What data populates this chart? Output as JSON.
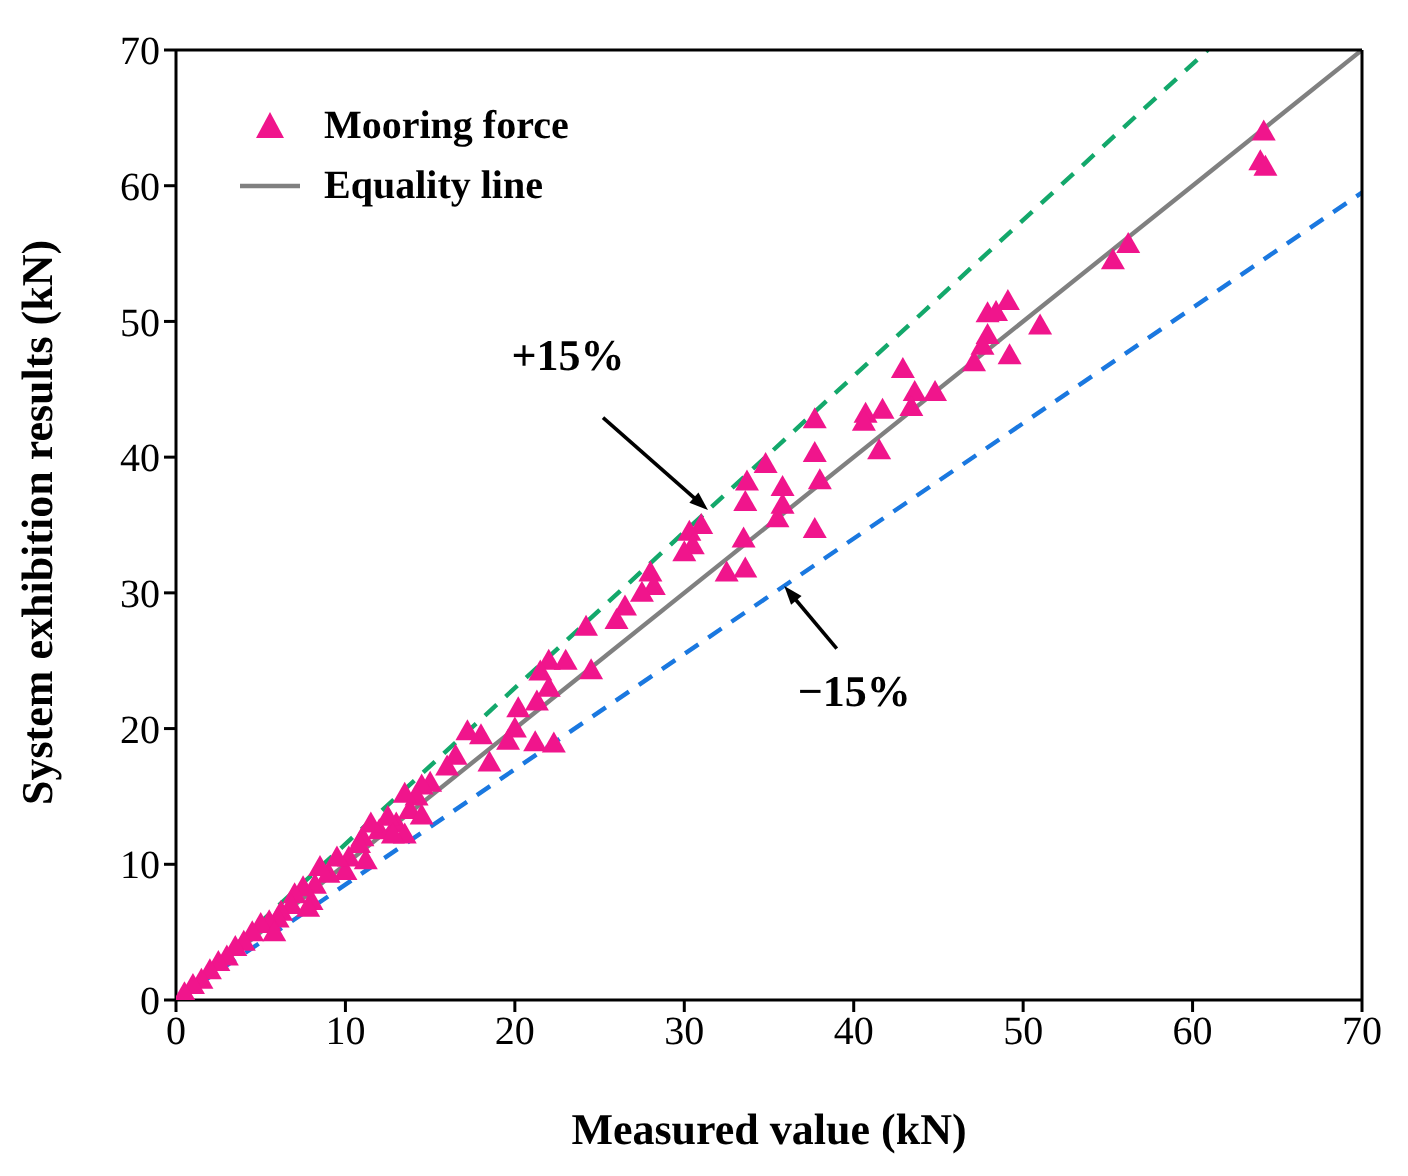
{
  "chart_data": {
    "type": "scatter",
    "xlabel": "Measured value (kN)",
    "ylabel": "System exhibition results (kN)",
    "xlim": [
      0,
      70
    ],
    "ylim": [
      0,
      70
    ],
    "xticks": [
      0,
      10,
      20,
      30,
      40,
      50,
      60,
      70
    ],
    "yticks": [
      0,
      10,
      20,
      30,
      40,
      50,
      60,
      70
    ],
    "legend": "top left",
    "annotations": [
      {
        "text": "+15%",
        "x": 31.4,
        "y": 36.1
      },
      {
        "text": "−15%",
        "x": 35.9,
        "y": 30.5
      }
    ],
    "series": [
      {
        "name": "Mooring force",
        "color": "#f0158c",
        "marker": "triangle",
        "x": [
          64.2,
          64.0,
          64.3,
          55.3,
          56.2,
          47.9,
          49.1,
          48.4,
          51.0,
          47.9,
          47.6,
          47.1,
          49.2,
          42.9,
          43.6,
          44.8,
          43.4,
          41.7,
          40.7,
          40.6,
          37.7,
          41.5,
          37.7,
          38.0,
          37.7,
          35.8,
          35.8,
          35.5,
          33.7,
          33.6,
          33.5,
          33.6,
          34.8,
          32.5,
          31.0,
          30.3,
          30.5,
          30.0,
          28.0,
          28.2,
          27.5,
          26.5,
          26.0,
          24.2,
          24.5,
          23.0,
          22.0,
          21.5,
          22.0,
          21.3,
          21.2,
          22.3,
          20.2,
          20.0,
          19.6,
          18.0,
          18.5,
          17.2,
          16.5,
          16.0,
          15.0,
          14.5,
          14.2,
          13.8,
          13.5,
          13.0,
          12.5,
          12.0,
          11.5,
          11.0,
          10.8,
          10.2,
          10.0,
          9.5,
          9.0,
          8.5,
          8.2,
          8.0,
          7.5,
          7.0,
          6.8,
          6.2,
          6.0,
          5.5,
          5.0,
          4.5,
          4.0,
          3.5,
          3.0,
          2.5,
          2.0,
          1.5,
          1.0,
          0.5,
          7.8,
          5.8,
          13.5,
          14.5,
          12.8,
          11.2
        ],
        "values": [
          64.0,
          61.8,
          61.4,
          54.5,
          55.7,
          50.6,
          51.5,
          50.7,
          49.7,
          49.0,
          48.2,
          47.0,
          47.5,
          46.5,
          44.8,
          44.8,
          43.7,
          43.5,
          43.2,
          42.6,
          42.8,
          40.5,
          40.3,
          38.3,
          34.7,
          37.8,
          36.5,
          35.5,
          38.2,
          36.7,
          34.0,
          31.8,
          39.5,
          31.5,
          35.0,
          34.5,
          33.5,
          33.0,
          31.5,
          30.5,
          30.0,
          29.0,
          28.0,
          27.5,
          24.3,
          25.0,
          25.0,
          24.2,
          23.0,
          22.0,
          19.0,
          18.9,
          21.5,
          20.0,
          19.1,
          19.5,
          17.5,
          19.8,
          18.0,
          17.2,
          16.0,
          15.8,
          15.0,
          14.0,
          15.2,
          13.0,
          13.5,
          12.5,
          13.0,
          12.0,
          11.5,
          10.5,
          9.5,
          10.5,
          9.3,
          9.8,
          8.5,
          7.3,
          8.3,
          7.8,
          7.0,
          6.5,
          6.0,
          5.8,
          5.6,
          5.0,
          4.3,
          3.9,
          3.2,
          2.8,
          2.2,
          1.5,
          1.1,
          0.5,
          6.8,
          5.0,
          12.2,
          13.6,
          12.2,
          10.3
        ]
      },
      {
        "name": "Equality line",
        "type": "line",
        "color": "#808080",
        "line_style": "solid",
        "x": [
          0,
          70
        ],
        "values": [
          0,
          70
        ]
      },
      {
        "type": "line",
        "color": "#13a86b",
        "line_style": "dashed",
        "x": [
          0,
          60.9
        ],
        "values": [
          0,
          70
        ]
      },
      {
        "type": "line",
        "color": "#1a78e0",
        "line_style": "dashed",
        "x": [
          0,
          70
        ],
        "values": [
          0,
          59.5
        ]
      }
    ]
  }
}
